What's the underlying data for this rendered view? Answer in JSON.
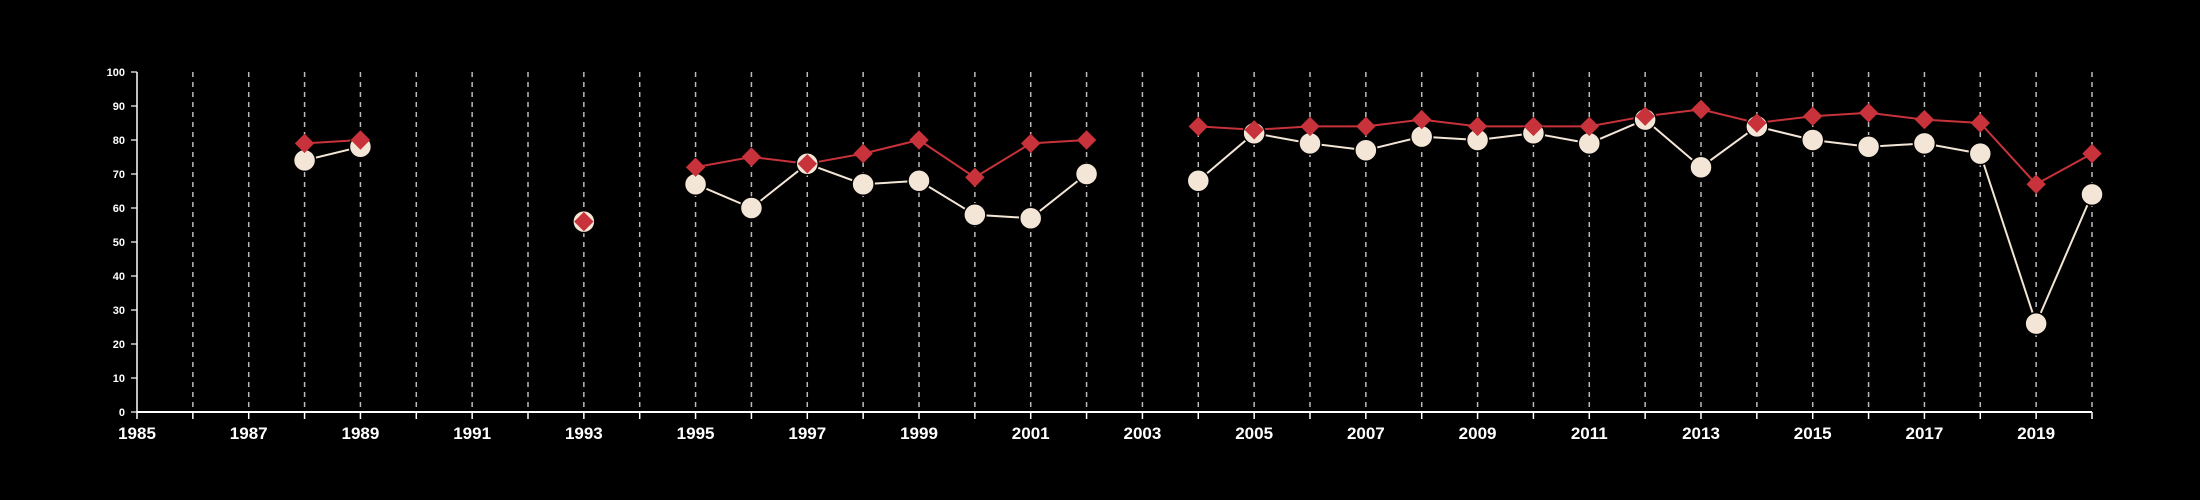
{
  "chart_data": {
    "type": "line",
    "title": "",
    "xlabel": "",
    "ylabel": "",
    "xlim": [
      1985,
      2020
    ],
    "ylim": [
      0,
      100
    ],
    "x_ticks": [
      1985,
      1986,
      1987,
      1988,
      1989,
      1990,
      1991,
      1992,
      1993,
      1994,
      1995,
      1996,
      1997,
      1998,
      1999,
      2000,
      2001,
      2002,
      2003,
      2004,
      2005,
      2006,
      2007,
      2008,
      2009,
      2010,
      2011,
      2012,
      2013,
      2014,
      2015,
      2016,
      2017,
      2018,
      2019,
      2020
    ],
    "x_tick_labels": [
      "1985",
      "1987",
      "1989",
      "1991",
      "1993",
      "1995",
      "1997",
      "1999",
      "2001",
      "2003",
      "2005",
      "2007",
      "2009",
      "2011",
      "2013",
      "2015",
      "2017",
      "2019"
    ],
    "y_ticks": [
      0,
      10,
      20,
      30,
      40,
      50,
      60,
      70,
      80,
      90,
      100
    ],
    "y_tick_labels": [
      "0",
      "10",
      "20",
      "30",
      "40",
      "50",
      "60",
      "70",
      "80",
      "90",
      "100"
    ],
    "vertical_grid": "dashed",
    "legend": "none",
    "series": [
      {
        "marker": "diamond",
        "color": "#c8323a",
        "segments": [
          [
            [
              1988,
              79
            ],
            [
              1989,
              80
            ]
          ],
          [
            [
              1993,
              56
            ]
          ],
          [
            [
              1995,
              72
            ],
            [
              1996,
              75
            ],
            [
              1997,
              73
            ],
            [
              1998,
              76
            ],
            [
              1999,
              80
            ],
            [
              2000,
              69
            ],
            [
              2001,
              79
            ],
            [
              2002,
              80
            ]
          ],
          [
            [
              2004,
              84
            ],
            [
              2005,
              83
            ],
            [
              2006,
              84
            ],
            [
              2007,
              84
            ],
            [
              2008,
              86
            ],
            [
              2009,
              84
            ],
            [
              2010,
              84
            ],
            [
              2011,
              84
            ],
            [
              2012,
              87
            ],
            [
              2013,
              89
            ],
            [
              2014,
              85
            ],
            [
              2015,
              87
            ],
            [
              2016,
              88
            ],
            [
              2017,
              86
            ],
            [
              2018,
              85
            ],
            [
              2019,
              67
            ],
            [
              2020,
              76
            ]
          ]
        ]
      },
      {
        "marker": "circle",
        "color": "#f3e6d6",
        "segments": [
          [
            [
              1988,
              74
            ],
            [
              1989,
              78
            ]
          ],
          [
            [
              1993,
              56
            ]
          ],
          [
            [
              1995,
              67
            ],
            [
              1996,
              60
            ],
            [
              1997,
              73
            ],
            [
              1998,
              67
            ],
            [
              1999,
              68
            ],
            [
              2000,
              58
            ],
            [
              2001,
              57
            ],
            [
              2002,
              70
            ]
          ],
          [
            [
              2004,
              68
            ],
            [
              2005,
              82
            ],
            [
              2006,
              79
            ],
            [
              2007,
              77
            ],
            [
              2008,
              81
            ],
            [
              2009,
              80
            ],
            [
              2010,
              82
            ],
            [
              2011,
              79
            ],
            [
              2012,
              86
            ],
            [
              2013,
              72
            ],
            [
              2014,
              84
            ],
            [
              2015,
              80
            ],
            [
              2016,
              78
            ],
            [
              2017,
              79
            ],
            [
              2018,
              76
            ],
            [
              2019,
              26
            ],
            [
              2020,
              64
            ]
          ]
        ]
      }
    ]
  },
  "colors": {
    "background": "#000000",
    "axis": "#ffffff",
    "grid": "#bbbbbb",
    "marker_edge": "#000000"
  }
}
